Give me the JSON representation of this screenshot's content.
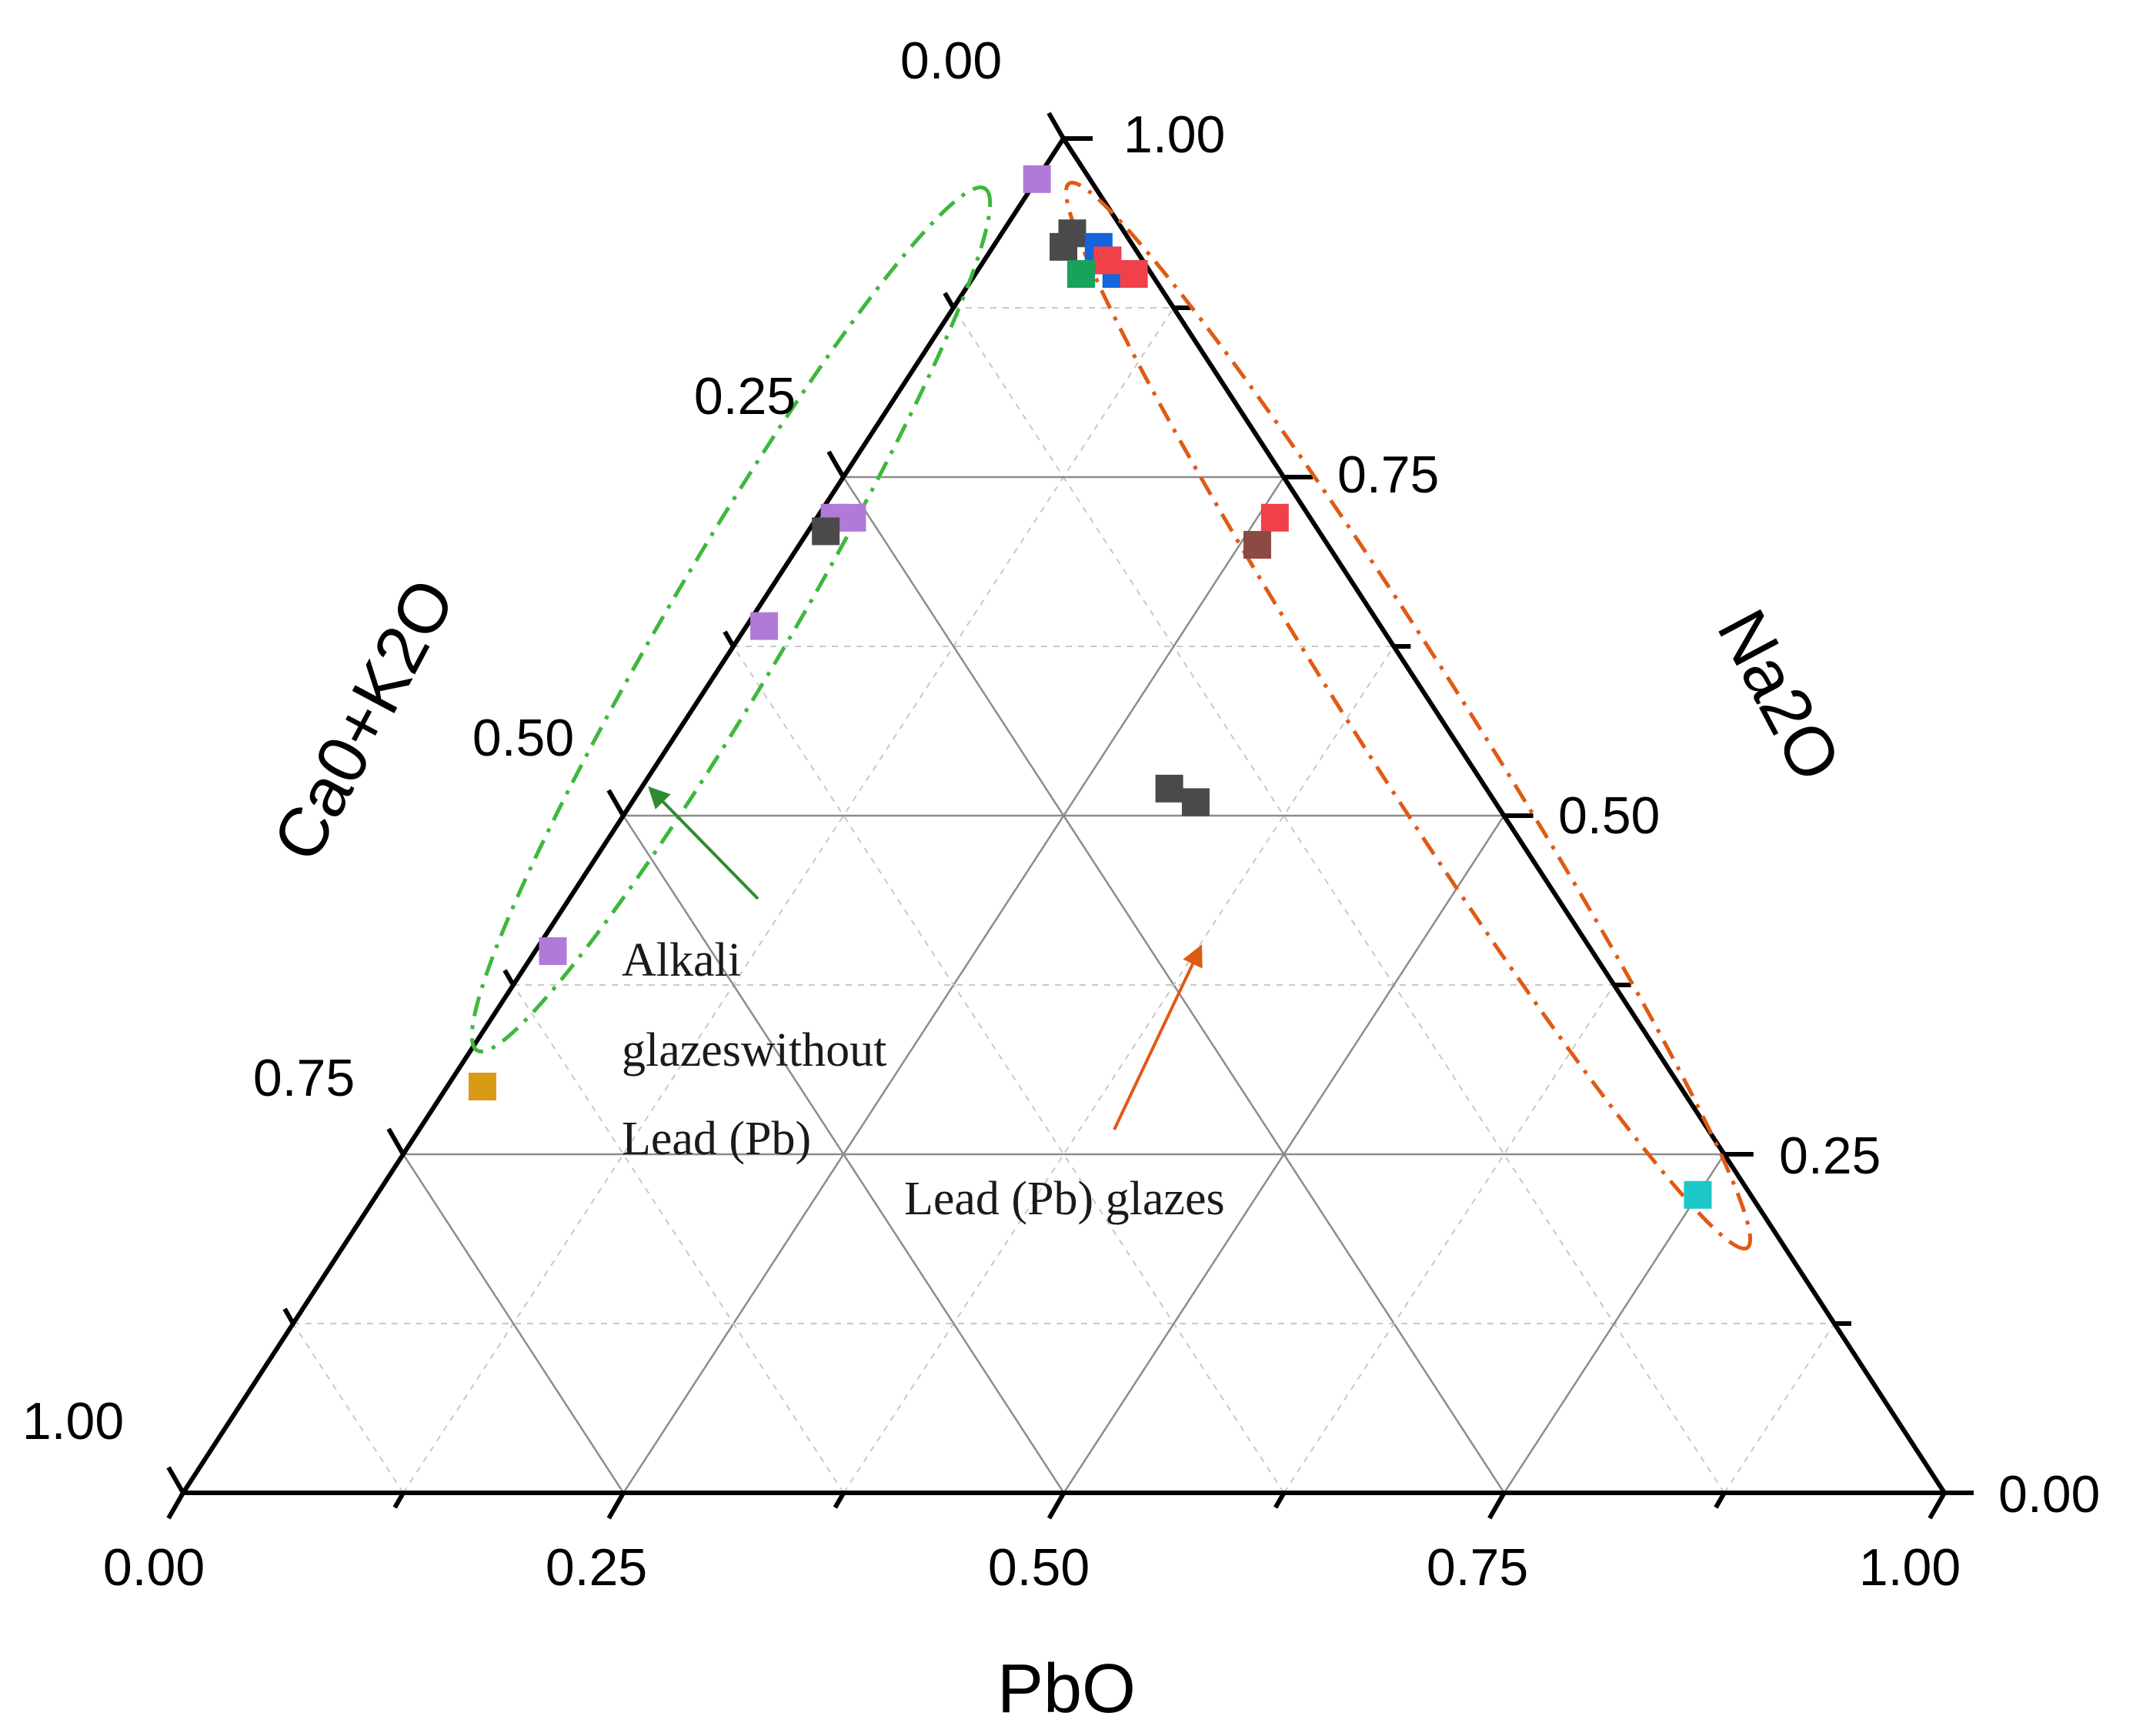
{
  "chart_data": {
    "type": "ternary-scatter",
    "axes": {
      "bottom": {
        "title": "PbO",
        "ticks": [
          "0.00",
          "0.25",
          "0.50",
          "0.75",
          "1.00"
        ]
      },
      "left": {
        "title": "Ca0+K2O",
        "ticks": [
          "0.00",
          "0.25",
          "0.50",
          "0.75",
          "1.00"
        ]
      },
      "right": {
        "title": "Na2O",
        "ticks": [
          "1.00",
          "0.75",
          "0.50",
          "0.25",
          "0.00"
        ]
      }
    },
    "range": [
      0,
      1
    ],
    "grid": true,
    "series": [
      {
        "name": "purple",
        "color": "#b27ad8",
        "points": [
          {
            "pbo": 0.0,
            "cao_k2o": 0.03,
            "na2o": 0.97
          },
          {
            "pbo": 0.02,
            "cao_k2o": 0.26,
            "na2o": 0.72
          },
          {
            "pbo": 0.01,
            "cao_k2o": 0.27,
            "na2o": 0.72
          },
          {
            "pbo": 0.01,
            "cao_k2o": 0.35,
            "na2o": 0.64
          },
          {
            "pbo": 0.01,
            "cao_k2o": 0.59,
            "na2o": 0.4
          }
        ]
      },
      {
        "name": "dark gray",
        "color": "#4a4a4a",
        "points": [
          {
            "pbo": 0.01,
            "cao_k2o": 0.28,
            "na2o": 0.71
          },
          {
            "pbo": 0.04,
            "cao_k2o": 0.03,
            "na2o": 0.93
          },
          {
            "pbo": 0.04,
            "cao_k2o": 0.04,
            "na2o": 0.92
          },
          {
            "pbo": 0.32,
            "cao_k2o": 0.17,
            "na2o": 0.51
          },
          {
            "pbo": 0.3,
            "cao_k2o": 0.18,
            "na2o": 0.52
          }
        ]
      },
      {
        "name": "blue",
        "color": "#1464dc",
        "points": [
          {
            "pbo": 0.06,
            "cao_k2o": 0.02,
            "na2o": 0.92
          },
          {
            "pbo": 0.07,
            "cao_k2o": 0.02,
            "na2o": 0.91
          },
          {
            "pbo": 0.08,
            "cao_k2o": 0.02,
            "na2o": 0.9
          }
        ]
      },
      {
        "name": "red",
        "color": "#f0404a",
        "points": [
          {
            "pbo": 0.07,
            "cao_k2o": 0.02,
            "na2o": 0.91
          },
          {
            "pbo": 0.09,
            "cao_k2o": 0.01,
            "na2o": 0.9
          },
          {
            "pbo": 0.26,
            "cao_k2o": 0.02,
            "na2o": 0.72
          }
        ]
      },
      {
        "name": "green",
        "color": "#17a35a",
        "points": [
          {
            "pbo": 0.06,
            "cao_k2o": 0.04,
            "na2o": 0.9
          }
        ]
      },
      {
        "name": "brown",
        "color": "#8b4a44",
        "points": [
          {
            "pbo": 0.26,
            "cao_k2o": 0.04,
            "na2o": 0.7
          }
        ]
      },
      {
        "name": "cyan",
        "color": "#1ec8c8",
        "points": [
          {
            "pbo": 0.75,
            "cao_k2o": 0.03,
            "na2o": 0.22
          }
        ]
      },
      {
        "name": "orange",
        "color": "#d99a16",
        "points": [
          {
            "pbo": 0.02,
            "cao_k2o": 0.68,
            "na2o": 0.3
          }
        ]
      }
    ],
    "annotations": [
      {
        "group": "alkali",
        "lines": [
          "Alkali",
          "glazeswithout",
          "Lead (Pb)"
        ],
        "color": "#2e9b2e"
      },
      {
        "group": "lead",
        "lines": [
          "Lead (Pb) glazes"
        ],
        "color": "#e05a14"
      }
    ]
  }
}
